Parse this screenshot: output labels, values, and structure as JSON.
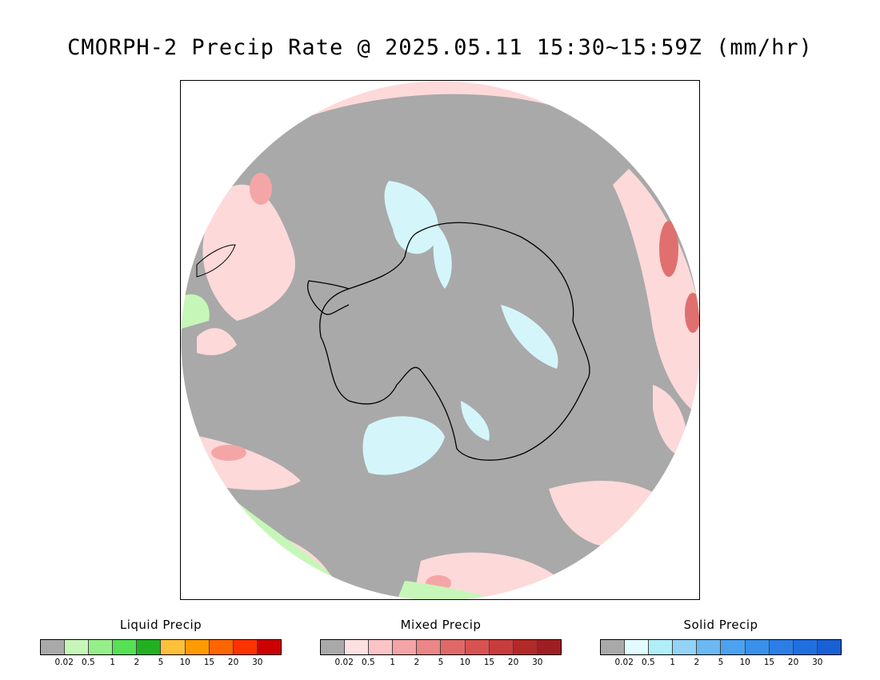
{
  "title": "CMORPH-2 Precip Rate @ 2025.05.11 15:30~15:59Z (mm/hr)",
  "map": {
    "projection": "south-polar-stereographic",
    "colors": {
      "no_precip": "#a9a9a9",
      "mixed_light": "#fdd9d9",
      "mixed_mod": "#f4a6a6",
      "mixed_heavy": "#e07070",
      "solid_light": "#d4f6fb",
      "liquid_light": "#c6f7b8",
      "coast": "#000000"
    }
  },
  "legends": [
    {
      "title": "Liquid Precip",
      "colors": [
        "#a9a9a9",
        "#c6f7b8",
        "#96ee88",
        "#55e055",
        "#22b022",
        "#ffc03a",
        "#ff9a00",
        "#ff6600",
        "#ff3300",
        "#cc0000"
      ],
      "ticks": [
        "0.02",
        "0.5",
        "1",
        "2",
        "5",
        "10",
        "15",
        "20",
        "30"
      ]
    },
    {
      "title": "Mixed Precip",
      "colors": [
        "#a9a9a9",
        "#fde0e0",
        "#fbc4c6",
        "#f4a3a6",
        "#ec8585",
        "#e26868",
        "#d85252",
        "#c83c3c",
        "#b32828",
        "#9e1e22"
      ],
      "ticks": [
        "0.02",
        "0.5",
        "1",
        "2",
        "5",
        "10",
        "15",
        "20",
        "30"
      ]
    },
    {
      "title": "Solid Precip",
      "colors": [
        "#a9a9a9",
        "#e2fcfe",
        "#b0eef8",
        "#93d3f6",
        "#6bb8f2",
        "#4ca2ef",
        "#3890ea",
        "#2a7ee6",
        "#1f6fe0",
        "#1860d4"
      ],
      "ticks": [
        "0.02",
        "0.5",
        "1",
        "2",
        "5",
        "10",
        "15",
        "20",
        "30"
      ]
    }
  ]
}
